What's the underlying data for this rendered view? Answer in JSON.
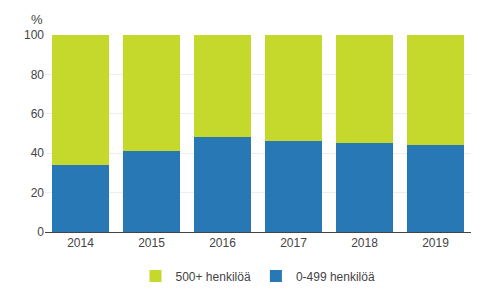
{
  "chart_data": {
    "type": "bar",
    "ylabel": "%",
    "categories": [
      "2014",
      "2015",
      "2016",
      "2017",
      "2018",
      "2019"
    ],
    "series": [
      {
        "name": "0-499 henkilöä",
        "color": "#2878b5",
        "values": [
          34,
          41,
          48,
          46,
          45,
          44
        ]
      },
      {
        "name": "500+ henkilöä",
        "color": "#c5d92d",
        "values": [
          66,
          59,
          52,
          54,
          55,
          56
        ]
      }
    ],
    "stacked": true,
    "ylim": [
      0,
      100
    ],
    "yticks": [
      0,
      20,
      40,
      60,
      80,
      100
    ],
    "grid": true,
    "legend": "bottom"
  }
}
